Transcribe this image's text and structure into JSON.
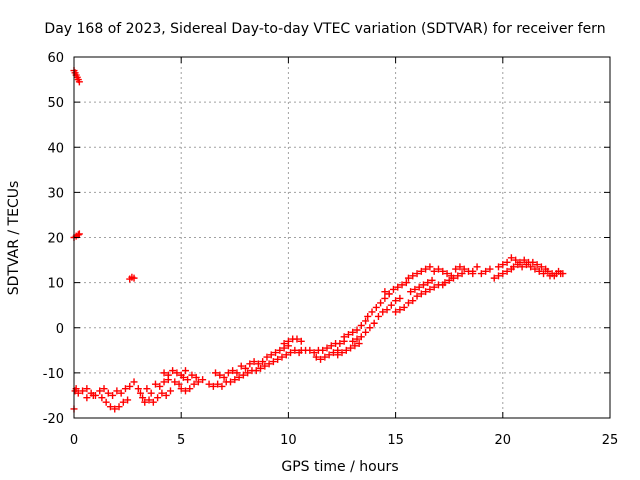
{
  "chart_data": {
    "type": "scatter",
    "title": "Day 168 of 2023, Sidereal Day-to-day VTEC variation (SDTVAR) for receiver fern",
    "xlabel": "GPS time / hours",
    "ylabel": "SDTVAR / TECUs",
    "xlim": [
      0,
      25
    ],
    "ylim": [
      -20,
      60
    ],
    "xticks": [
      "0",
      "5",
      "10",
      "15",
      "20",
      "25"
    ],
    "yticks": [
      "-20",
      "-10",
      "0",
      "10",
      "20",
      "30",
      "40",
      "50",
      "60"
    ],
    "grid": true,
    "marker": "plus",
    "color": "#ff0000",
    "series": [
      {
        "name": "SDTVAR",
        "points": [
          [
            0.0,
            57.0
          ],
          [
            0.05,
            56.5
          ],
          [
            0.1,
            56.0
          ],
          [
            0.15,
            55.5
          ],
          [
            0.2,
            55.0
          ],
          [
            0.25,
            54.5
          ],
          [
            0.0,
            20.0
          ],
          [
            0.1,
            20.3
          ],
          [
            0.2,
            20.6
          ],
          [
            0.25,
            20.8
          ],
          [
            2.6,
            10.8
          ],
          [
            2.7,
            11.2
          ],
          [
            2.8,
            11.0
          ],
          [
            0.0,
            -18.0
          ],
          [
            0.05,
            -14.0
          ],
          [
            0.1,
            -13.5
          ],
          [
            0.2,
            -14.5
          ],
          [
            0.4,
            -14.0
          ],
          [
            0.6,
            -13.5
          ],
          [
            0.8,
            -14.5
          ],
          [
            1.0,
            -15.0
          ],
          [
            1.2,
            -14.0
          ],
          [
            1.4,
            -13.5
          ],
          [
            0.6,
            -15.5
          ],
          [
            0.9,
            -15.0
          ],
          [
            1.3,
            -15.5
          ],
          [
            1.6,
            -14.5
          ],
          [
            1.8,
            -15.0
          ],
          [
            2.0,
            -14.0
          ],
          [
            2.2,
            -14.5
          ],
          [
            2.4,
            -13.5
          ],
          [
            1.5,
            -16.5
          ],
          [
            1.7,
            -17.5
          ],
          [
            1.9,
            -18.0
          ],
          [
            2.1,
            -17.5
          ],
          [
            2.3,
            -16.5
          ],
          [
            2.5,
            -16.0
          ],
          [
            2.6,
            -13.0
          ],
          [
            2.8,
            -12.0
          ],
          [
            3.0,
            -13.5
          ],
          [
            3.1,
            -14.5
          ],
          [
            3.2,
            -15.5
          ],
          [
            3.3,
            -16.5
          ],
          [
            3.4,
            -13.5
          ],
          [
            3.6,
            -14.5
          ],
          [
            3.8,
            -12.5
          ],
          [
            4.0,
            -13.0
          ],
          [
            4.2,
            -12.0
          ],
          [
            4.4,
            -11.5
          ],
          [
            3.5,
            -16.0
          ],
          [
            3.7,
            -16.5
          ],
          [
            3.9,
            -15.5
          ],
          [
            4.1,
            -14.5
          ],
          [
            4.3,
            -15.0
          ],
          [
            4.5,
            -14.0
          ],
          [
            4.2,
            -10.0
          ],
          [
            4.4,
            -10.5
          ],
          [
            4.6,
            -9.5
          ],
          [
            4.8,
            -10.0
          ],
          [
            5.0,
            -10.5
          ],
          [
            5.2,
            -9.5
          ],
          [
            4.7,
            -12.0
          ],
          [
            4.9,
            -12.5
          ],
          [
            5.1,
            -11.0
          ],
          [
            5.3,
            -11.5
          ],
          [
            5.5,
            -10.5
          ],
          [
            5.7,
            -11.0
          ],
          [
            5.0,
            -13.5
          ],
          [
            5.2,
            -14.0
          ],
          [
            5.4,
            -13.5
          ],
          [
            5.6,
            -12.5
          ],
          [
            5.8,
            -12.0
          ],
          [
            6.0,
            -11.5
          ],
          [
            6.3,
            -12.5
          ],
          [
            6.5,
            -13.0
          ],
          [
            6.7,
            -12.5
          ],
          [
            6.9,
            -13.0
          ],
          [
            7.1,
            -12.0
          ],
          [
            6.6,
            -10.0
          ],
          [
            6.8,
            -10.5
          ],
          [
            7.0,
            -11.0
          ],
          [
            7.2,
            -10.0
          ],
          [
            7.4,
            -9.5
          ],
          [
            7.6,
            -10.0
          ],
          [
            7.3,
            -12.0
          ],
          [
            7.5,
            -11.5
          ],
          [
            7.7,
            -11.0
          ],
          [
            7.9,
            -10.5
          ],
          [
            8.1,
            -10.0
          ],
          [
            8.3,
            -9.5
          ],
          [
            7.8,
            -8.5
          ],
          [
            8.0,
            -9.0
          ],
          [
            8.2,
            -8.0
          ],
          [
            8.4,
            -7.5
          ],
          [
            8.6,
            -8.0
          ],
          [
            8.8,
            -7.5
          ],
          [
            8.5,
            -9.5
          ],
          [
            8.7,
            -9.0
          ],
          [
            8.9,
            -8.5
          ],
          [
            9.1,
            -8.0
          ],
          [
            9.3,
            -7.5
          ],
          [
            9.5,
            -7.0
          ],
          [
            9.0,
            -6.5
          ],
          [
            9.2,
            -6.0
          ],
          [
            9.4,
            -5.5
          ],
          [
            9.6,
            -5.0
          ],
          [
            9.8,
            -4.5
          ],
          [
            10.0,
            -4.0
          ],
          [
            9.7,
            -6.5
          ],
          [
            9.9,
            -6.0
          ],
          [
            10.1,
            -5.5
          ],
          [
            10.3,
            -5.0
          ],
          [
            10.5,
            -5.5
          ],
          [
            9.8,
            -3.5
          ],
          [
            10.0,
            -3.0
          ],
          [
            10.2,
            -2.5
          ],
          [
            10.4,
            -2.5
          ],
          [
            10.6,
            -3.0
          ],
          [
            10.6,
            -5.0
          ],
          [
            10.8,
            -5.0
          ],
          [
            11.0,
            -5.0
          ],
          [
            11.2,
            -5.5
          ],
          [
            11.4,
            -5.0
          ],
          [
            11.6,
            -5.0
          ],
          [
            11.3,
            -6.5
          ],
          [
            11.5,
            -7.0
          ],
          [
            11.7,
            -6.5
          ],
          [
            11.9,
            -6.0
          ],
          [
            12.1,
            -5.5
          ],
          [
            12.3,
            -5.0
          ],
          [
            11.8,
            -4.5
          ],
          [
            12.0,
            -4.0
          ],
          [
            12.2,
            -3.5
          ],
          [
            12.4,
            -3.5
          ],
          [
            12.6,
            -3.0
          ],
          [
            12.3,
            -6.0
          ],
          [
            12.5,
            -5.5
          ],
          [
            12.7,
            -5.0
          ],
          [
            12.9,
            -4.5
          ],
          [
            13.1,
            -4.0
          ],
          [
            13.3,
            -3.5
          ],
          [
            12.6,
            -2.0
          ],
          [
            12.8,
            -1.5
          ],
          [
            13.0,
            -1.0
          ],
          [
            13.2,
            -0.5
          ],
          [
            13.4,
            0.5
          ],
          [
            13.6,
            1.5
          ],
          [
            13.0,
            -3.0
          ],
          [
            13.2,
            -2.5
          ],
          [
            13.4,
            -2.0
          ],
          [
            13.6,
            -1.0
          ],
          [
            13.8,
            0.0
          ],
          [
            14.0,
            1.0
          ],
          [
            13.7,
            2.5
          ],
          [
            13.9,
            3.5
          ],
          [
            14.1,
            4.5
          ],
          [
            14.3,
            5.5
          ],
          [
            14.5,
            6.5
          ],
          [
            14.7,
            7.5
          ],
          [
            14.2,
            2.5
          ],
          [
            14.4,
            3.5
          ],
          [
            14.6,
            4.0
          ],
          [
            14.8,
            5.0
          ],
          [
            15.0,
            6.0
          ],
          [
            15.2,
            6.5
          ],
          [
            14.5,
            8.0
          ],
          [
            14.7,
            7.5
          ],
          [
            14.9,
            8.5
          ],
          [
            15.1,
            9.0
          ],
          [
            15.3,
            9.5
          ],
          [
            15.5,
            10.0
          ],
          [
            15.0,
            3.5
          ],
          [
            15.2,
            4.0
          ],
          [
            15.4,
            4.5
          ],
          [
            15.6,
            5.5
          ],
          [
            15.8,
            6.0
          ],
          [
            16.0,
            7.0
          ],
          [
            15.6,
            11.0
          ],
          [
            15.8,
            11.5
          ],
          [
            16.0,
            12.0
          ],
          [
            16.2,
            12.5
          ],
          [
            16.4,
            13.0
          ],
          [
            16.6,
            13.5
          ],
          [
            15.7,
            8.0
          ],
          [
            15.9,
            8.5
          ],
          [
            16.1,
            9.0
          ],
          [
            16.3,
            9.5
          ],
          [
            16.5,
            10.0
          ],
          [
            16.7,
            10.5
          ],
          [
            16.2,
            7.5
          ],
          [
            16.4,
            8.0
          ],
          [
            16.6,
            8.5
          ],
          [
            16.8,
            9.0
          ],
          [
            17.0,
            9.5
          ],
          [
            17.2,
            9.5
          ],
          [
            16.8,
            12.5
          ],
          [
            17.0,
            13.0
          ],
          [
            17.2,
            12.5
          ],
          [
            17.4,
            12.0
          ],
          [
            17.6,
            11.5
          ],
          [
            17.3,
            10.0
          ],
          [
            17.5,
            10.5
          ],
          [
            17.7,
            11.0
          ],
          [
            17.9,
            11.5
          ],
          [
            18.1,
            12.0
          ],
          [
            17.8,
            13.0
          ],
          [
            18.0,
            13.5
          ],
          [
            18.2,
            13.0
          ],
          [
            18.4,
            12.5
          ],
          [
            18.6,
            12.0
          ],
          [
            18.6,
            12.5
          ],
          [
            18.8,
            13.5
          ],
          [
            19.0,
            12.0
          ],
          [
            19.2,
            12.5
          ],
          [
            19.4,
            13.0
          ],
          [
            19.6,
            11.0
          ],
          [
            19.8,
            11.5
          ],
          [
            20.0,
            12.0
          ],
          [
            20.2,
            12.5
          ],
          [
            20.4,
            13.0
          ],
          [
            19.8,
            13.5
          ],
          [
            20.0,
            14.0
          ],
          [
            20.2,
            14.5
          ],
          [
            20.4,
            15.5
          ],
          [
            20.6,
            15.0
          ],
          [
            20.8,
            14.5
          ],
          [
            20.5,
            13.5
          ],
          [
            20.7,
            14.0
          ],
          [
            20.9,
            13.5
          ],
          [
            21.1,
            14.0
          ],
          [
            21.3,
            13.5
          ],
          [
            21.5,
            13.0
          ],
          [
            21.0,
            15.0
          ],
          [
            21.2,
            14.5
          ],
          [
            21.4,
            14.5
          ],
          [
            21.6,
            14.0
          ],
          [
            21.8,
            13.5
          ],
          [
            22.0,
            13.0
          ],
          [
            21.7,
            12.5
          ],
          [
            21.9,
            12.0
          ],
          [
            22.1,
            12.5
          ],
          [
            22.3,
            12.0
          ],
          [
            22.5,
            12.0
          ],
          [
            22.7,
            12.0
          ],
          [
            22.2,
            11.5
          ],
          [
            22.4,
            11.5
          ],
          [
            22.6,
            12.5
          ],
          [
            22.8,
            12.0
          ]
        ]
      }
    ]
  }
}
